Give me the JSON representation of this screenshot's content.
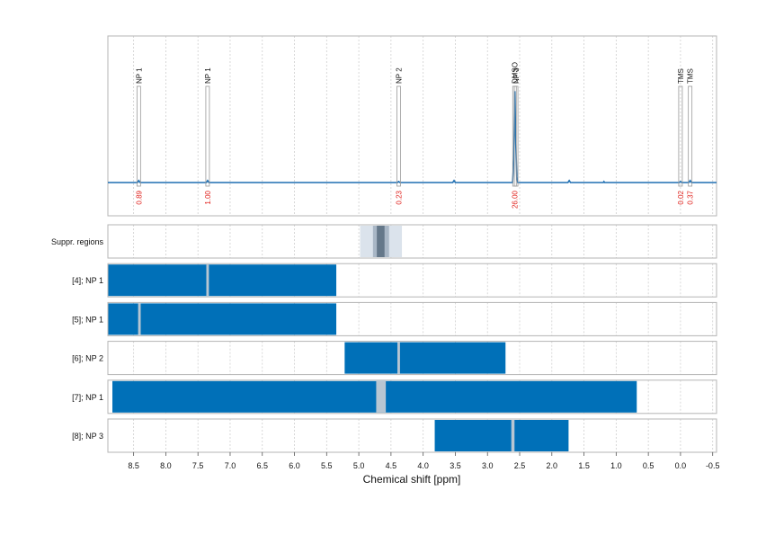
{
  "chart_data": {
    "type": "nmr-spectrum-with-region-tracks",
    "xlabel": "Chemical shift [ppm]",
    "x_reversed": true,
    "xlim": [
      8.9,
      -0.56
    ],
    "x_ticks": [
      8.5,
      8.0,
      7.5,
      7.0,
      6.5,
      6.0,
      5.5,
      5.0,
      4.5,
      4.0,
      3.5,
      3.0,
      2.5,
      2.0,
      1.5,
      1.0,
      0.5,
      0.0,
      -0.5
    ],
    "x_tick_labels": [
      "8.5",
      "8.0",
      "7.5",
      "7.0",
      "6.5",
      "6.0",
      "5.5",
      "5.0",
      "4.5",
      "4.0",
      "3.5",
      "3.0",
      "2.5",
      "2.0",
      "1.5",
      "1.0",
      "0.5",
      "0.0",
      "-0.5"
    ],
    "gridlines": "dotted vertical",
    "spectrum": {
      "color": "#1f6fb2",
      "baseline": [
        [
          8.9,
          0
        ],
        [
          8.44,
          0
        ],
        [
          8.42,
          2
        ],
        [
          8.4,
          0
        ],
        [
          7.37,
          0
        ],
        [
          7.35,
          2
        ],
        [
          7.33,
          0
        ],
        [
          4.4,
          0
        ],
        [
          4.38,
          1
        ],
        [
          4.36,
          0
        ],
        [
          3.54,
          0
        ],
        [
          3.52,
          2
        ],
        [
          3.5,
          0
        ],
        [
          2.61,
          0
        ],
        [
          2.59,
          25
        ],
        [
          2.575,
          95
        ],
        [
          2.56,
          40
        ],
        [
          2.545,
          6
        ],
        [
          2.53,
          0
        ],
        [
          1.75,
          0
        ],
        [
          1.73,
          2
        ],
        [
          1.71,
          0
        ],
        [
          1.2,
          0
        ],
        [
          1.19,
          1
        ],
        [
          1.18,
          0
        ],
        [
          0.02,
          0
        ],
        [
          0.0,
          1
        ],
        [
          -0.02,
          0
        ],
        [
          -0.13,
          0
        ],
        [
          -0.15,
          2
        ],
        [
          -0.17,
          0
        ],
        [
          -0.56,
          0
        ]
      ]
    },
    "peak_annotations": [
      {
        "label": "NP 1",
        "ppm": 8.42,
        "integral": "0.89"
      },
      {
        "label": "NP 1",
        "ppm": 7.35,
        "integral": "1.00"
      },
      {
        "label": "NP 2",
        "ppm": 4.38,
        "integral": "0.23"
      },
      {
        "label": "DMSO",
        "ppm": 2.58,
        "integral": "26.00"
      },
      {
        "label": "NP 3",
        "ppm": 2.555,
        "integral": ""
      },
      {
        "label": "TMS",
        "ppm": 0.0,
        "integral": "0.02"
      },
      {
        "label": "TMS",
        "ppm": -0.15,
        "integral": "0.37"
      }
    ],
    "tracks": [
      {
        "label": "Suppr. regions",
        "kind": "suppression",
        "bands": [
          {
            "from": 4.98,
            "to": 4.33,
            "shade": "#dbe3ec"
          },
          {
            "from": 4.78,
            "to": 4.53,
            "shade": "#a9b7c6"
          },
          {
            "from": 4.72,
            "to": 4.6,
            "shade": "#65788a"
          }
        ]
      },
      {
        "label": "[4]; NP 1",
        "kind": "region",
        "from": 8.9,
        "to": 5.35,
        "gaps": [
          [
            7.37,
            7.33
          ]
        ]
      },
      {
        "label": "[5]; NP 1",
        "kind": "region",
        "from": 8.9,
        "to": 5.35,
        "gaps": [
          [
            8.43,
            8.39
          ]
        ]
      },
      {
        "label": "[6]; NP 2",
        "kind": "region",
        "from": 5.22,
        "to": 2.72,
        "gaps": [
          [
            4.4,
            4.36
          ]
        ]
      },
      {
        "label": "[7]; NP 1",
        "kind": "region",
        "from": 8.83,
        "to": 0.68,
        "gaps": [
          [
            4.73,
            4.58
          ]
        ]
      },
      {
        "label": "[8]; NP 3",
        "kind": "region",
        "from": 3.82,
        "to": 1.74,
        "gaps": [
          [
            2.63,
            2.58
          ]
        ]
      }
    ],
    "colors": {
      "spectrum": "#1f6fb2",
      "region_fill": "#0070b8",
      "region_gap": "#b8c6d2",
      "integral_text": "#e0201b",
      "frame": "#b5b5b5",
      "grid": "#cfcfcf",
      "peak_box": "#9a9a9a"
    }
  }
}
